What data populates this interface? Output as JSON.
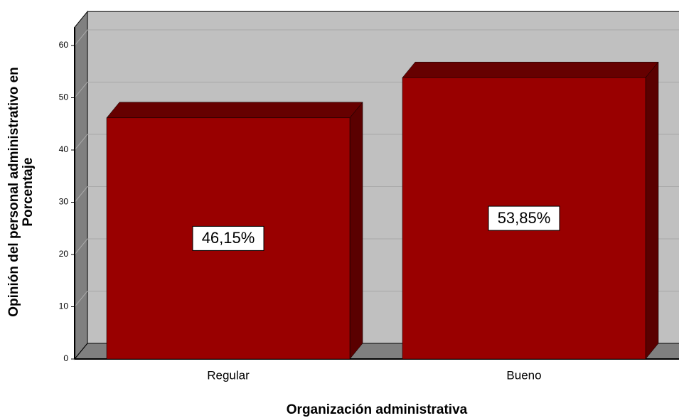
{
  "chart_data": {
    "type": "bar3d",
    "y_label": [
      "Opinión del personal administrativo en",
      "Porcentaje"
    ],
    "x_label": "Organización administrativa",
    "categories": [
      "Regular",
      "Bueno"
    ],
    "values": [
      46.15,
      53.85
    ],
    "value_labels": [
      "46,15%",
      "53,85%"
    ],
    "color": "#990000",
    "ylim": [
      0,
      63.5
    ],
    "yticks": [
      0,
      10,
      20,
      30,
      40,
      50,
      60
    ],
    "grid": true
  }
}
